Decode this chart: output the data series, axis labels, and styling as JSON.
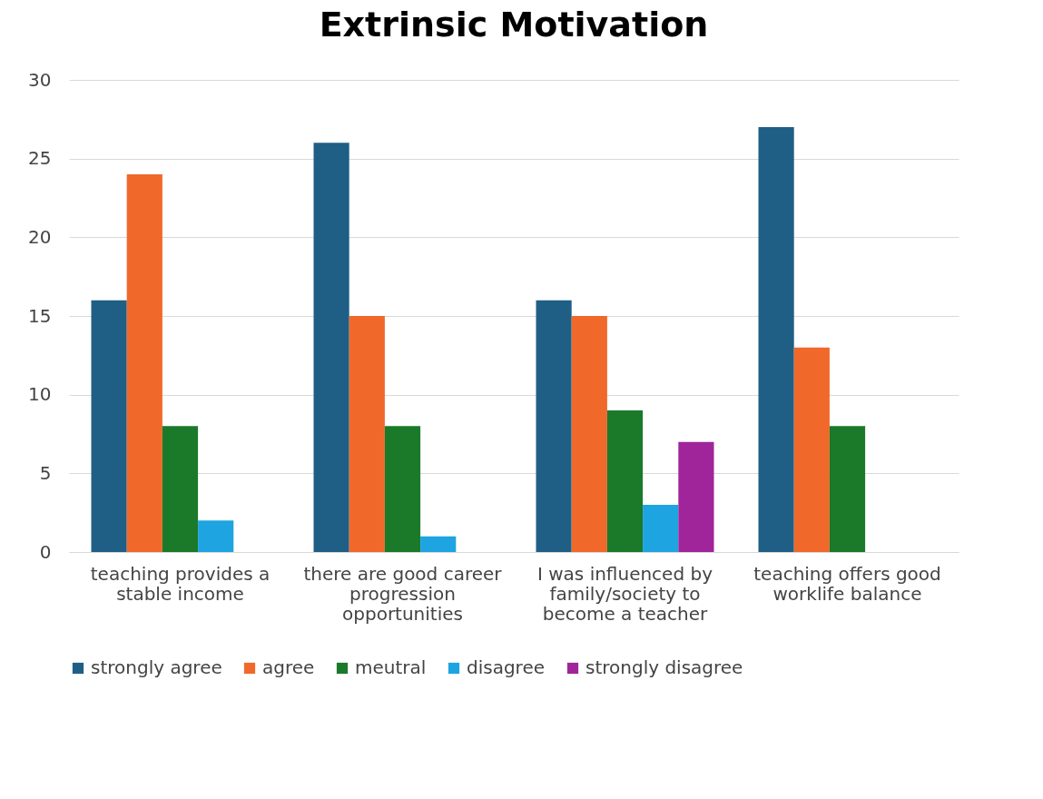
{
  "chart_data": {
    "type": "bar",
    "title": "Extrinsic Motivation",
    "categories": [
      "teaching provides a stable income",
      "there are good career progression opportunities",
      "I was influenced by family/society to become a teacher",
      "teaching offers good worklife balance"
    ],
    "series": [
      {
        "name": "strongly agree",
        "color": "#1f5f86",
        "values": [
          16,
          26,
          16,
          27
        ]
      },
      {
        "name": "agree",
        "color": "#f0692a",
        "values": [
          24,
          15,
          15,
          13
        ]
      },
      {
        "name": "meutral",
        "color": "#1b7a2a",
        "values": [
          8,
          8,
          9,
          8
        ]
      },
      {
        "name": "disagree",
        "color": "#1ea4e0",
        "values": [
          2,
          1,
          3,
          null
        ]
      },
      {
        "name": "strongly disagree",
        "color": "#a0259a",
        "values": [
          null,
          null,
          7,
          null
        ]
      }
    ],
    "ylim": [
      0,
      30
    ],
    "yticks": [
      0,
      5,
      10,
      15,
      20,
      25,
      30
    ],
    "grid": "y",
    "legend": "bottom"
  }
}
